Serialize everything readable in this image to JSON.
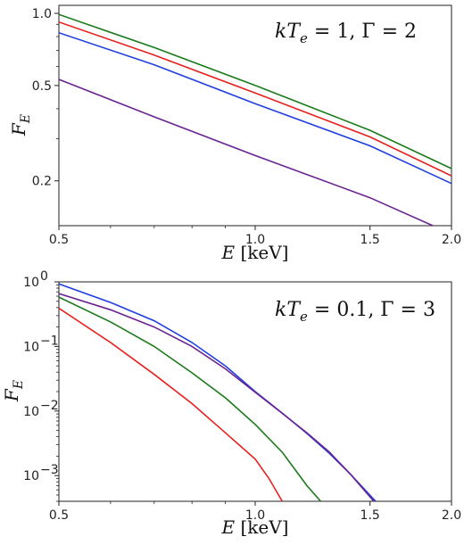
{
  "chart_data": [
    {
      "type": "line",
      "xscale": "log",
      "yscale": "log",
      "xlim": [
        0.5,
        2.0
      ],
      "ylim": [
        0.13,
        1.08
      ],
      "xlabel": "E [keV]",
      "ylabel": "F_E",
      "xticks": [
        0.5,
        1.0,
        1.5,
        2.0
      ],
      "xtick_labels": [
        "0.5",
        "1.0",
        "1.5",
        "2.0"
      ],
      "yticks": [
        0.2,
        0.5,
        1.0
      ],
      "ytick_labels": [
        "0.2",
        "0.5",
        "1.0"
      ],
      "annotation": "kT_e = 1, Γ = 2",
      "annotation_parts": {
        "lhs1": "kT",
        "sub1": "e",
        "eq1": " = 1, Γ = 2"
      },
      "grid": false,
      "series": [
        {
          "color": "#1a7a1a",
          "x": [
            0.5,
            0.7,
            1.0,
            1.5,
            2.0
          ],
          "y": [
            0.99,
            0.72,
            0.5,
            0.325,
            0.225
          ]
        },
        {
          "color": "#e6201e",
          "x": [
            0.5,
            0.7,
            1.0,
            1.5,
            2.0
          ],
          "y": [
            0.92,
            0.67,
            0.465,
            0.305,
            0.21
          ]
        },
        {
          "color": "#1f3fe0",
          "x": [
            0.5,
            0.7,
            1.0,
            1.5,
            2.0
          ],
          "y": [
            0.83,
            0.61,
            0.42,
            0.28,
            0.195
          ]
        },
        {
          "color": "#6a2390",
          "x": [
            0.5,
            0.7,
            1.0,
            1.5,
            2.0
          ],
          "y": [
            0.53,
            0.37,
            0.255,
            0.17,
            0.12
          ]
        }
      ]
    },
    {
      "type": "line",
      "xscale": "log",
      "yscale": "log",
      "xlim": [
        0.5,
        2.0
      ],
      "ylim": [
        0.0004,
        1.0
      ],
      "xlabel": "E [keV]",
      "ylabel": "F_E",
      "xticks": [
        0.5,
        1.0,
        1.5,
        2.0
      ],
      "xtick_labels": [
        "0.5",
        "1.0",
        "1.5",
        "2.0"
      ],
      "yticks": [
        1,
        0.1,
        0.01,
        0.001
      ],
      "ytick_bases": [
        "10",
        "10",
        "10",
        "10"
      ],
      "ytick_exps": [
        "0",
        "−1",
        "−2",
        "−3"
      ],
      "annotation": "kT_e = 0.1, Γ = 3",
      "annotation_parts": {
        "lhs1": "kT",
        "sub1": "e",
        "eq1": " = 0.1, Γ = 3"
      },
      "grid": false,
      "series": [
        {
          "color": "#1f3fe0",
          "x": [
            0.5,
            0.6,
            0.7,
            0.8,
            0.9,
            1.0,
            1.1,
            1.2,
            1.3,
            1.4,
            1.53
          ],
          "y": [
            0.93,
            0.48,
            0.25,
            0.115,
            0.05,
            0.02,
            0.0093,
            0.0045,
            0.0022,
            0.00105,
            0.0004
          ]
        },
        {
          "color": "#6a2390",
          "x": [
            0.5,
            0.6,
            0.7,
            0.8,
            0.9,
            1.0,
            1.1,
            1.2,
            1.3,
            1.4,
            1.52
          ],
          "y": [
            0.66,
            0.37,
            0.2,
            0.1,
            0.045,
            0.0195,
            0.0092,
            0.0046,
            0.0023,
            0.00105,
            0.0004
          ]
        },
        {
          "color": "#1a7a1a",
          "x": [
            0.5,
            0.6,
            0.7,
            0.8,
            0.9,
            1.0,
            1.1,
            1.2,
            1.26
          ],
          "y": [
            0.58,
            0.24,
            0.1,
            0.039,
            0.016,
            0.0062,
            0.0023,
            0.0007,
            0.0004
          ]
        },
        {
          "color": "#e6201e",
          "x": [
            0.5,
            0.6,
            0.7,
            0.8,
            0.9,
            1.0,
            1.05,
            1.1
          ],
          "y": [
            0.39,
            0.115,
            0.037,
            0.013,
            0.0046,
            0.0018,
            0.0009,
            0.0004
          ]
        }
      ]
    }
  ]
}
